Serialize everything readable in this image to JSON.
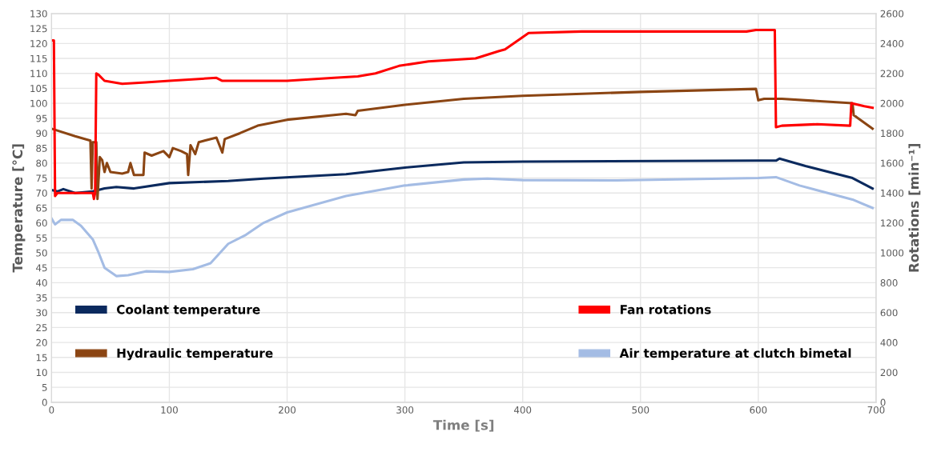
{
  "chart_data": {
    "type": "line",
    "xlabel": "Time [s]",
    "ylabel": "Temperature [°C]",
    "y2label": "Rotations [min⁻¹]",
    "xlim": [
      0,
      700
    ],
    "xticks": [
      0,
      100,
      200,
      300,
      400,
      500,
      600,
      700
    ],
    "ylim": [
      0,
      130
    ],
    "yticks": [
      0,
      5,
      10,
      15,
      20,
      25,
      30,
      35,
      40,
      45,
      50,
      55,
      60,
      65,
      70,
      75,
      80,
      85,
      90,
      95,
      100,
      105,
      110,
      115,
      120,
      125,
      130
    ],
    "y2lim": [
      0,
      2600
    ],
    "y2ticks": [
      0,
      200,
      400,
      600,
      800,
      1000,
      1200,
      1400,
      1600,
      1800,
      2000,
      2200,
      2400,
      2600
    ],
    "grid": true,
    "legend": "bottom",
    "marker": "none",
    "line_style": "solid",
    "series": [
      {
        "name": "Coolant temperature",
        "color": "#0b2a5e",
        "x": [
          0,
          5,
          10,
          20,
          35,
          45,
          55,
          70,
          100,
          150,
          180,
          250,
          300,
          350,
          400,
          600,
          615,
          618,
          640,
          680,
          697
        ],
        "values": [
          71,
          70.5,
          71.3,
          70,
          70.5,
          71.5,
          72,
          71.5,
          73.3,
          74,
          74.8,
          76.3,
          78.5,
          80.2,
          80.5,
          80.8,
          80.8,
          81.5,
          79,
          75,
          71.5
        ]
      },
      {
        "name": "Hydraulic temperature",
        "color": "#8b4513",
        "x": [
          0,
          20,
          33,
          34,
          35,
          38,
          39,
          41,
          43,
          45,
          47,
          50,
          60,
          65,
          67,
          70,
          78,
          79,
          85,
          95,
          100,
          103,
          110,
          115,
          116,
          118,
          122,
          125,
          140,
          145,
          147,
          160,
          175,
          200,
          250,
          258,
          260,
          300,
          350,
          400,
          500,
          598,
          600,
          605,
          620,
          680,
          681,
          683,
          697
        ],
        "values": [
          91.5,
          89,
          87.5,
          71.5,
          87,
          87,
          68,
          82,
          81,
          77,
          80,
          77,
          76.5,
          77,
          80,
          76,
          76,
          83.5,
          82.5,
          84,
          82,
          85,
          84,
          83,
          76,
          86,
          83,
          87,
          88.5,
          83.5,
          88,
          90,
          92.5,
          94.5,
          96.5,
          96,
          97.5,
          99.5,
          101.5,
          102.5,
          103.8,
          104.8,
          101,
          101.5,
          101.5,
          100,
          96,
          95.5,
          91.5
        ]
      },
      {
        "name": "Fan rotations",
        "color": "#ff0000",
        "axis": "y2",
        "x": [
          0,
          2,
          3,
          5,
          35,
          36,
          37,
          38,
          40,
          45,
          60,
          80,
          100,
          140,
          145,
          170,
          200,
          240,
          260,
          275,
          295,
          320,
          360,
          380,
          385,
          405,
          450,
          500,
          590,
          598,
          614,
          615,
          620,
          650,
          678,
          679,
          690,
          697
        ],
        "values": [
          2420,
          2420,
          1380,
          1400,
          1400,
          1360,
          1400,
          2200,
          2190,
          2150,
          2130,
          2140,
          2150,
          2170,
          2150,
          2150,
          2150,
          2170,
          2180,
          2200,
          2250,
          2280,
          2300,
          2350,
          2360,
          2470,
          2480,
          2480,
          2480,
          2490,
          2490,
          1840,
          1850,
          1860,
          1850,
          2000,
          1980,
          1970
        ]
      },
      {
        "name": "Air temperature at clutch bimetal",
        "color": "#a4bce4",
        "x": [
          0,
          3,
          8,
          18,
          25,
          35,
          40,
          45,
          55,
          65,
          80,
          100,
          120,
          135,
          150,
          165,
          180,
          200,
          250,
          300,
          350,
          370,
          400,
          480,
          600,
          615,
          635,
          680,
          697
        ],
        "values": [
          61.5,
          59.5,
          61,
          61,
          59,
          54.5,
          50,
          45,
          42.2,
          42.5,
          43.8,
          43.6,
          44.5,
          46.5,
          53,
          56,
          60,
          63.5,
          69,
          72.5,
          74.5,
          74.8,
          74.3,
          74.2,
          75,
          75.3,
          72.5,
          67.8,
          65
        ]
      }
    ]
  }
}
